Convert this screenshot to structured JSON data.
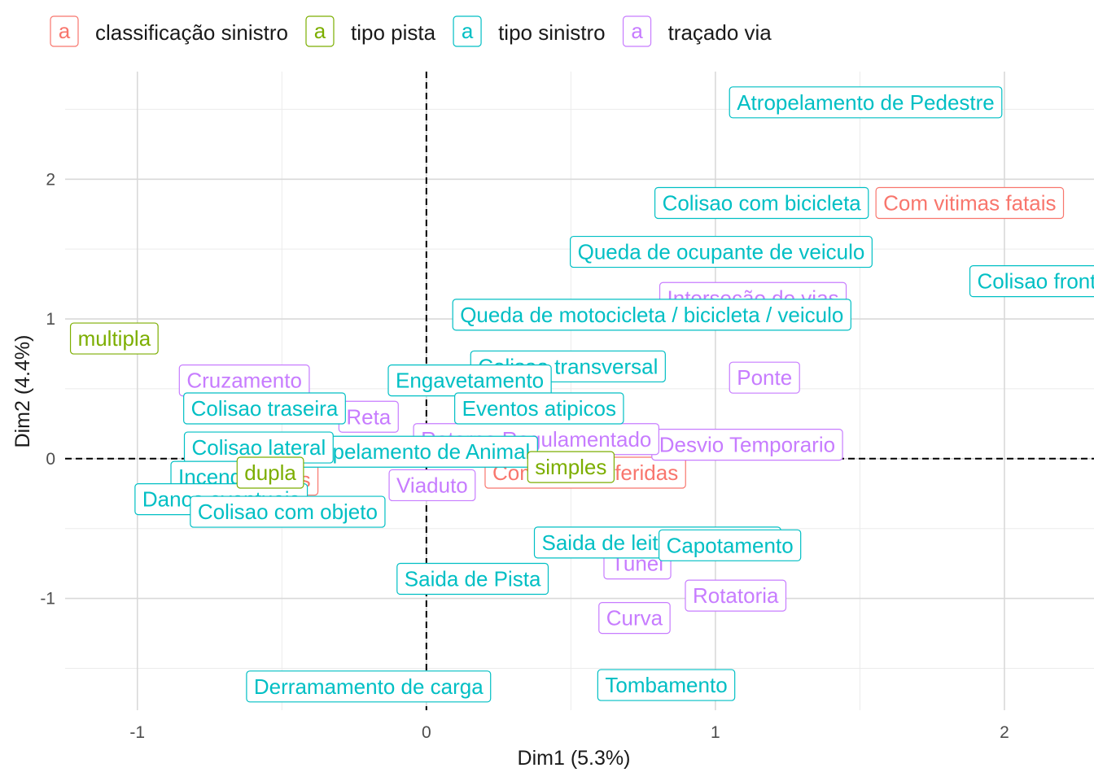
{
  "chart_data": {
    "type": "scatter",
    "xlabel": "Dim1 (5.3%)",
    "ylabel": "Dim2 (4.4%)",
    "xlim": [
      -1.25,
      2.31
    ],
    "ylim": [
      -1.8,
      2.77
    ],
    "x_ticks": [
      -1,
      0,
      1,
      2
    ],
    "y_ticks": [
      -1,
      0,
      1,
      2
    ],
    "x_tick_labels": [
      "-1",
      "0",
      "1",
      "2"
    ],
    "y_tick_labels": [
      "-1",
      "0",
      "1",
      "2"
    ],
    "reference_lines": {
      "x": 0,
      "y": 0,
      "style": "dashed"
    },
    "grid": true,
    "legend_position": "top",
    "legend_key_glyph": "a",
    "groups": [
      {
        "name": "classificação sinistro",
        "color": "#F8766D"
      },
      {
        "name": "tipo pista",
        "color": "#7CAE00"
      },
      {
        "name": "tipo sinistro",
        "color": "#00BFC4"
      },
      {
        "name": "traçado via",
        "color": "#C77CFF"
      }
    ],
    "points": [
      {
        "label": "Com vitimas fatais",
        "x": 1.88,
        "y": 1.83,
        "group": 0
      },
      {
        "label": "Com vitimas feridas",
        "x": 0.55,
        "y": -0.1,
        "group": 0
      },
      {
        "label": "Sem vitimas",
        "x": -0.6,
        "y": -0.15,
        "group": 0
      },
      {
        "label": "Interseção de vias",
        "x": 1.13,
        "y": 1.15,
        "group": 3
      },
      {
        "label": "Ponte",
        "x": 1.17,
        "y": 0.58,
        "group": 3
      },
      {
        "label": "Desvio Temporario",
        "x": 1.11,
        "y": 0.1,
        "group": 3
      },
      {
        "label": "Cruzamento",
        "x": -0.63,
        "y": 0.56,
        "group": 3
      },
      {
        "label": "Retorno Regulamentado",
        "x": 0.38,
        "y": 0.14,
        "group": 3
      },
      {
        "label": "Reta",
        "x": -0.2,
        "y": 0.3,
        "group": 3
      },
      {
        "label": "Viaduto",
        "x": 0.02,
        "y": -0.19,
        "group": 3
      },
      {
        "label": "Tunel",
        "x": 0.73,
        "y": -0.75,
        "group": 3
      },
      {
        "label": "Rotatoria",
        "x": 1.07,
        "y": -0.98,
        "group": 3
      },
      {
        "label": "Curva",
        "x": 0.72,
        "y": -1.14,
        "group": 3
      },
      {
        "label": "Colisao frontal",
        "x": 2.14,
        "y": 1.27,
        "group": 2
      },
      {
        "label": "Queda de ocupante de veiculo",
        "x": 1.02,
        "y": 1.48,
        "group": 2
      },
      {
        "label": "Atropelamento de Pedestre",
        "x": 1.52,
        "y": 2.55,
        "group": 2
      },
      {
        "label": "Colisao com bicicleta",
        "x": 1.16,
        "y": 1.83,
        "group": 2
      },
      {
        "label": "Queda de motocicleta / bicicleta / veiculo",
        "x": 0.78,
        "y": 1.03,
        "group": 2
      },
      {
        "label": "Colisao transversal",
        "x": 0.49,
        "y": 0.66,
        "group": 2
      },
      {
        "label": "Engavetamento",
        "x": 0.15,
        "y": 0.56,
        "group": 2
      },
      {
        "label": "Eventos atipicos",
        "x": 0.39,
        "y": 0.36,
        "group": 2
      },
      {
        "label": "Colisao traseira",
        "x": -0.56,
        "y": 0.36,
        "group": 2
      },
      {
        "label": "Atropelamento de Animal",
        "x": -0.05,
        "y": 0.05,
        "group": 2
      },
      {
        "label": "Colisao lateral",
        "x": -0.58,
        "y": 0.08,
        "group": 2
      },
      {
        "label": "Incendio",
        "x": -0.72,
        "y": -0.13,
        "group": 2
      },
      {
        "label": "Danos eventuais",
        "x": -0.71,
        "y": -0.29,
        "group": 2
      },
      {
        "label": "Colisao com objeto",
        "x": -0.48,
        "y": -0.38,
        "group": 2
      },
      {
        "label": "Saida de leito carrocavel",
        "x": 0.8,
        "y": -0.6,
        "group": 2
      },
      {
        "label": "Capotamento",
        "x": 1.05,
        "y": -0.62,
        "group": 2
      },
      {
        "label": "Saida de Pista",
        "x": 0.16,
        "y": -0.86,
        "group": 2
      },
      {
        "label": "Tombamento",
        "x": 0.83,
        "y": -1.62,
        "group": 2
      },
      {
        "label": "Derramamento de carga",
        "x": -0.2,
        "y": -1.63,
        "group": 2
      },
      {
        "label": "multipla",
        "x": -1.08,
        "y": 0.86,
        "group": 1
      },
      {
        "label": "simples",
        "x": 0.5,
        "y": -0.06,
        "group": 1
      },
      {
        "label": "dupla",
        "x": -0.54,
        "y": -0.1,
        "group": 1
      }
    ]
  }
}
